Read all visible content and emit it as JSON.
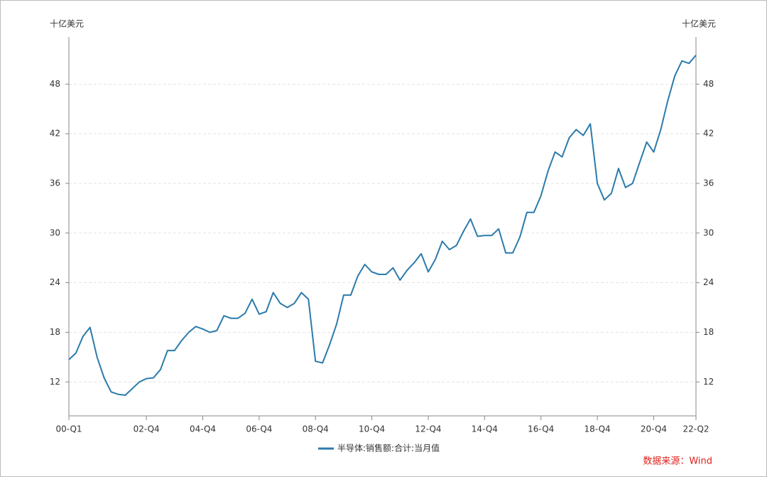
{
  "chart_data": {
    "type": "line",
    "y_label": "十亿美元",
    "y2_label": "十亿美元",
    "categories": [
      "00-Q1",
      null,
      null,
      null,
      null,
      null,
      null,
      null,
      null,
      null,
      null,
      "02-Q4",
      null,
      null,
      null,
      null,
      null,
      null,
      null,
      "04-Q4",
      null,
      null,
      null,
      null,
      null,
      null,
      null,
      "06-Q4",
      null,
      null,
      null,
      null,
      null,
      null,
      null,
      "08-Q4",
      null,
      null,
      null,
      null,
      null,
      null,
      null,
      "10-Q4",
      null,
      null,
      null,
      null,
      null,
      null,
      null,
      "12-Q4",
      null,
      null,
      null,
      null,
      null,
      null,
      null,
      "14-Q4",
      null,
      null,
      null,
      null,
      null,
      null,
      null,
      "16-Q4",
      null,
      null,
      null,
      null,
      null,
      null,
      null,
      "18-Q4",
      null,
      null,
      null,
      null,
      null,
      null,
      null,
      "20-Q4",
      null,
      null,
      null,
      null,
      null,
      "22-Q2"
    ],
    "series": [
      {
        "name": "半导体:销售额:合计:当月值",
        "color": "#2b7bab",
        "values": [
          14.7,
          15.5,
          17.5,
          18.6,
          15.0,
          12.5,
          10.8,
          10.5,
          10.4,
          11.2,
          12.0,
          12.4,
          12.5,
          13.5,
          15.8,
          15.8,
          17.0,
          18.0,
          18.7,
          18.4,
          18.0,
          18.2,
          20.0,
          19.7,
          19.7,
          20.3,
          22.0,
          20.2,
          20.5,
          22.8,
          21.5,
          21.0,
          21.5,
          22.8,
          22.0,
          14.5,
          14.3,
          16.5,
          19.0,
          22.5,
          22.5,
          24.8,
          26.2,
          25.3,
          25.0,
          25.0,
          25.8,
          24.3,
          25.5,
          26.4,
          27.5,
          25.3,
          26.8,
          29.0,
          28.0,
          28.5,
          30.2,
          31.7,
          29.6,
          29.7,
          29.7,
          30.5,
          27.6,
          27.6,
          29.5,
          32.5,
          32.5,
          34.5,
          37.5,
          39.8,
          39.2,
          41.5,
          42.5,
          41.8,
          43.2,
          36.0,
          34.0,
          34.8,
          37.8,
          35.5,
          36.0,
          38.5,
          41.0,
          39.8,
          42.5,
          46.0,
          49.0,
          50.8,
          50.5,
          51.5
        ]
      }
    ],
    "ylim": [
      7.9,
      53.7
    ],
    "yticks": [
      12,
      18,
      24,
      30,
      36,
      42,
      48
    ],
    "y2lim": [
      7.9,
      53.7
    ],
    "y2ticks": [
      12,
      18,
      24,
      30,
      36,
      42,
      48
    ],
    "grid": true,
    "legend": "bottom",
    "source": "数据来源：Wind"
  }
}
